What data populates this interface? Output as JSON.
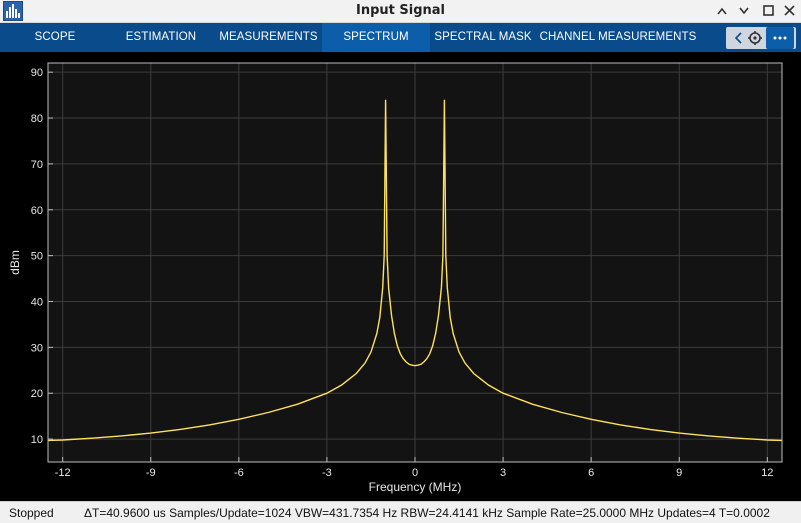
{
  "window": {
    "title": "Input Signal",
    "app_icon": "bar-chart-icon",
    "controls": [
      "minimize-icon",
      "restore-icon",
      "close-icon"
    ]
  },
  "tabs": [
    {
      "label": "SCOPE",
      "active": false
    },
    {
      "label": "ESTIMATION",
      "active": false
    },
    {
      "label": "MEASUREMENTS",
      "active": false
    },
    {
      "label": "SPECTRUM",
      "active": true
    },
    {
      "label": "SPECTRAL MASK",
      "active": false
    },
    {
      "label": "CHANNEL MEASUREMENTS",
      "active": false
    }
  ],
  "toolbar": {
    "left_icon": "chevron-left-icon",
    "settings_icon": "gear-icon",
    "more_icon": "more-options-icon"
  },
  "colors": {
    "accent": "#0a4b8c",
    "active_tab": "#0c5eaa",
    "plot_background": "#131313",
    "grid": "#3c3c3c",
    "trace": "#ffe25a",
    "axis_text": "#e6e6e6"
  },
  "chart_data": {
    "type": "line",
    "title": "",
    "xlabel": "Frequency (MHz)",
    "ylabel": "dBm",
    "xlim": [
      -12.5,
      12.5
    ],
    "ylim": [
      5,
      92
    ],
    "xticks": [
      -12,
      -9,
      -6,
      -3,
      0,
      3,
      6,
      9,
      12
    ],
    "yticks": [
      10,
      20,
      30,
      40,
      50,
      60,
      70,
      80,
      90
    ],
    "grid": true,
    "series": [
      {
        "x": [
          -12.5,
          -12,
          -11,
          -10,
          -9,
          -8,
          -7,
          -6,
          -5,
          -4,
          -3,
          -2.5,
          -2,
          -1.7,
          -1.5,
          -1.3,
          -1.2,
          -1.1,
          -1.05,
          -1.0,
          -0.95,
          -0.9,
          -0.8,
          -0.7,
          -0.6,
          -0.5,
          -0.4,
          -0.3,
          -0.2,
          -0.1,
          0,
          0.1,
          0.2,
          0.3,
          0.4,
          0.5,
          0.6,
          0.7,
          0.8,
          0.9,
          0.95,
          1.0,
          1.05,
          1.1,
          1.2,
          1.3,
          1.5,
          1.7,
          2,
          2.5,
          3,
          4,
          5,
          6,
          7,
          8,
          9,
          10,
          11,
          12,
          12.5
        ],
        "values": [
          9.7,
          9.8,
          10.2,
          10.7,
          11.3,
          12.1,
          13.1,
          14.3,
          15.8,
          17.6,
          20,
          21.8,
          24.3,
          26.6,
          29,
          33,
          36.5,
          43,
          50,
          84,
          50,
          43,
          37,
          33,
          30.3,
          28.6,
          27.5,
          26.8,
          26.3,
          26.1,
          26.0,
          26.1,
          26.3,
          26.8,
          27.5,
          28.6,
          30.3,
          33,
          37,
          43,
          50,
          84,
          50,
          43,
          36.5,
          33,
          29,
          26.6,
          24.3,
          21.8,
          20,
          17.6,
          15.8,
          14.3,
          13.1,
          12.1,
          11.3,
          10.7,
          10.2,
          9.8,
          9.7
        ]
      }
    ]
  },
  "status": {
    "state": "Stopped",
    "info": "ΔT=40.9600 us  Samples/Update=1024  VBW=431.7354 Hz  RBW=24.4141 kHz  Sample Rate=25.0000 MHz  Updates=4  T=0.0002"
  }
}
